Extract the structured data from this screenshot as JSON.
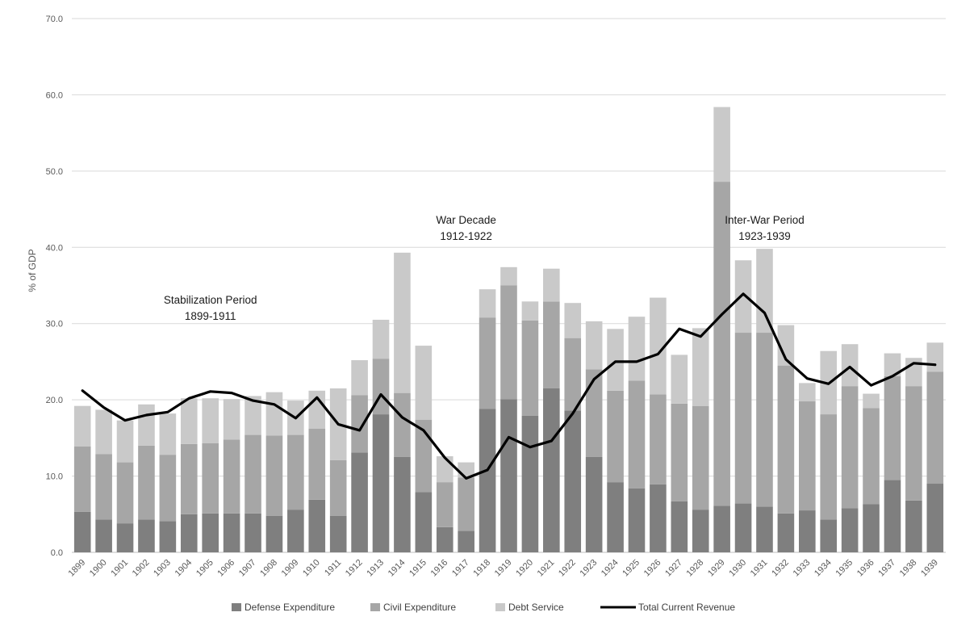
{
  "chart_data": {
    "type": "bar",
    "stacked": true,
    "ylabel": "% of GDP",
    "ylim": [
      0,
      70
    ],
    "yticks": [
      "0.0",
      "10.0",
      "20.0",
      "30.0",
      "40.0",
      "50.0",
      "60.0",
      "70.0"
    ],
    "grid": true,
    "legend_position": "bottom",
    "categories": [
      "1899",
      "1900",
      "1901",
      "1902",
      "1903",
      "1904",
      "1905",
      "1906",
      "1907",
      "1908",
      "1909",
      "1910",
      "1911",
      "1912",
      "1913",
      "1914",
      "1915",
      "1916",
      "1917",
      "1918",
      "1919",
      "1920",
      "1921",
      "1922",
      "1923",
      "1924",
      "1925",
      "1926",
      "1927",
      "1928",
      "1929",
      "1930",
      "1931",
      "1932",
      "1933",
      "1934",
      "1935",
      "1936",
      "1937",
      "1938",
      "1939"
    ],
    "series": [
      {
        "name": "Defense Expenditure",
        "kind": "bar",
        "color": "#7f7f7f",
        "values": [
          5.3,
          4.3,
          3.8,
          4.3,
          4.1,
          5.0,
          5.1,
          5.1,
          5.1,
          4.8,
          5.6,
          6.9,
          4.8,
          13.1,
          18.1,
          12.5,
          7.9,
          3.3,
          2.8,
          18.8,
          20.1,
          17.9,
          21.5,
          18.6,
          12.5,
          9.2,
          8.4,
          8.9,
          6.7,
          5.6,
          6.1,
          6.4,
          6.0,
          5.1,
          5.5,
          4.3,
          5.8,
          6.3,
          9.5,
          6.8,
          9.0
        ]
      },
      {
        "name": "Civil Expenditure",
        "kind": "bar",
        "color": "#a6a6a6",
        "values": [
          8.6,
          8.6,
          8.0,
          9.7,
          8.7,
          9.2,
          9.2,
          9.7,
          10.3,
          10.5,
          9.8,
          9.3,
          7.3,
          7.5,
          7.3,
          8.4,
          9.5,
          5.9,
          7.0,
          12.0,
          14.9,
          12.5,
          11.4,
          9.5,
          11.5,
          12.0,
          14.1,
          11.8,
          12.8,
          13.6,
          42.5,
          22.4,
          22.8,
          19.4,
          14.3,
          13.8,
          16.0,
          12.6,
          13.6,
          15.0,
          14.7
        ]
      },
      {
        "name": "Debt Service",
        "kind": "bar",
        "color": "#c9c9c9",
        "values": [
          5.3,
          5.8,
          5.5,
          5.4,
          5.4,
          6.0,
          5.9,
          5.3,
          5.1,
          5.7,
          4.5,
          5.0,
          9.4,
          4.6,
          5.1,
          18.4,
          9.7,
          3.4,
          2.0,
          3.7,
          2.4,
          2.5,
          4.3,
          4.6,
          6.3,
          8.1,
          8.4,
          12.7,
          6.4,
          10.2,
          9.8,
          9.5,
          11.0,
          5.3,
          2.4,
          8.3,
          5.5,
          1.9,
          3.0,
          3.7,
          3.8
        ]
      },
      {
        "name": "Total Current Revenue",
        "kind": "line",
        "color": "#000000",
        "values": [
          21.2,
          19.0,
          17.3,
          18.0,
          18.4,
          20.2,
          21.1,
          20.9,
          19.9,
          19.4,
          17.6,
          20.3,
          16.8,
          16.0,
          20.7,
          17.7,
          16.0,
          12.4,
          9.7,
          10.8,
          15.1,
          13.8,
          14.6,
          18.2,
          22.7,
          25.0,
          25.0,
          26.0,
          29.3,
          28.3,
          31.2,
          33.9,
          31.4,
          25.3,
          22.8,
          22.1,
          24.3,
          21.9,
          23.1,
          24.8,
          24.6
        ]
      }
    ],
    "annotations": [
      {
        "lines": [
          "Stabilization Period",
          "1899-1911"
        ],
        "at_category": "1905",
        "y": [
          32.6,
          30.5
        ]
      },
      {
        "lines": [
          "War Decade",
          "1912-1922"
        ],
        "at_category": "1917",
        "y": [
          43.1,
          41.0
        ]
      },
      {
        "lines": [
          "Inter-War Period",
          "1923-1939"
        ],
        "at_category": "1931",
        "y": [
          43.1,
          41.0
        ]
      }
    ]
  }
}
